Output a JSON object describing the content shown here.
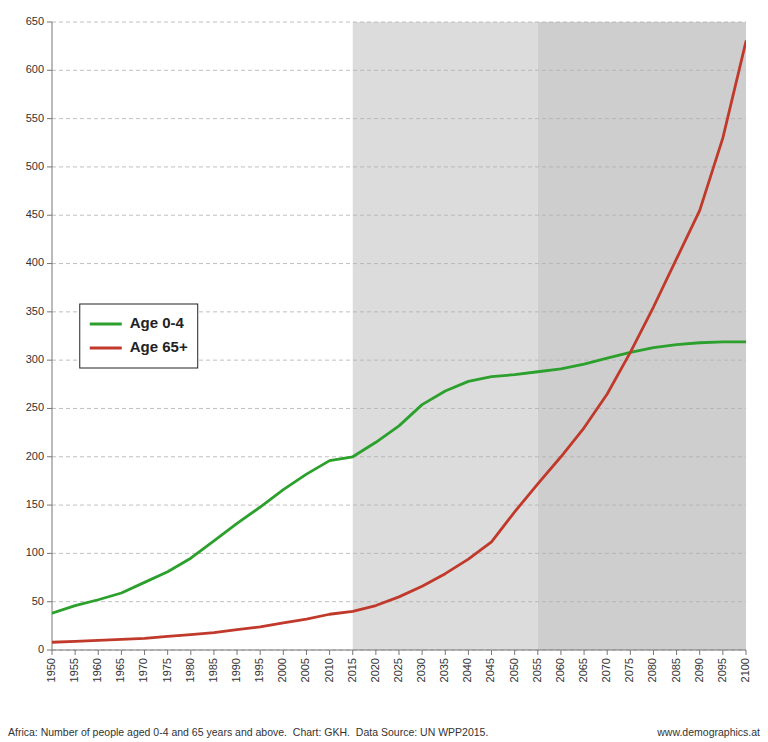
{
  "chart_data": {
    "type": "line",
    "x": [
      1950,
      1955,
      1960,
      1965,
      1970,
      1975,
      1980,
      1985,
      1990,
      1995,
      2000,
      2005,
      2010,
      2015,
      2020,
      2025,
      2030,
      2035,
      2040,
      2045,
      2050,
      2055,
      2060,
      2065,
      2070,
      2075,
      2080,
      2085,
      2090,
      2095,
      2100
    ],
    "series": [
      {
        "name": "Age 0-4",
        "color": "#2ca02c",
        "values": [
          38,
          46,
          52,
          59,
          70,
          81,
          95,
          113,
          131,
          148,
          166,
          182,
          196,
          200,
          215,
          232,
          254,
          268,
          278,
          283,
          285,
          288,
          291,
          296,
          302,
          308,
          313,
          316,
          318,
          319,
          319
        ]
      },
      {
        "name": "Age 65+",
        "color": "#c0392b",
        "values": [
          8,
          9,
          10,
          11,
          12,
          14,
          16,
          18,
          21,
          24,
          28,
          32,
          37,
          40,
          46,
          55,
          66,
          79,
          94,
          112,
          143,
          172,
          200,
          230,
          265,
          308,
          355,
          405,
          455,
          530,
          630
        ]
      }
    ],
    "xlim": [
      1950,
      2100
    ],
    "xticks": [
      1950,
      1955,
      1960,
      1965,
      1970,
      1975,
      1980,
      1985,
      1990,
      1995,
      2000,
      2005,
      2010,
      2015,
      2020,
      2025,
      2030,
      2035,
      2040,
      2045,
      2050,
      2055,
      2060,
      2065,
      2070,
      2075,
      2080,
      2085,
      2090,
      2095,
      2100
    ],
    "ylim": [
      0,
      650
    ],
    "yticks": [
      0,
      50,
      100,
      150,
      200,
      250,
      300,
      350,
      400,
      450,
      500,
      550,
      600,
      650
    ],
    "bands": [
      {
        "start": 2015,
        "end": 2055,
        "color": "#dcdcdc"
      },
      {
        "start": 2055,
        "end": 2100,
        "color": "#cecece"
      }
    ],
    "grid": true,
    "legend": "center left",
    "caption": "Africa: Number of people aged 0-4 and 65 years and above.  Chart: GKH.  Data Source: UN WPP2015.",
    "credit": "www.demographics.at"
  }
}
